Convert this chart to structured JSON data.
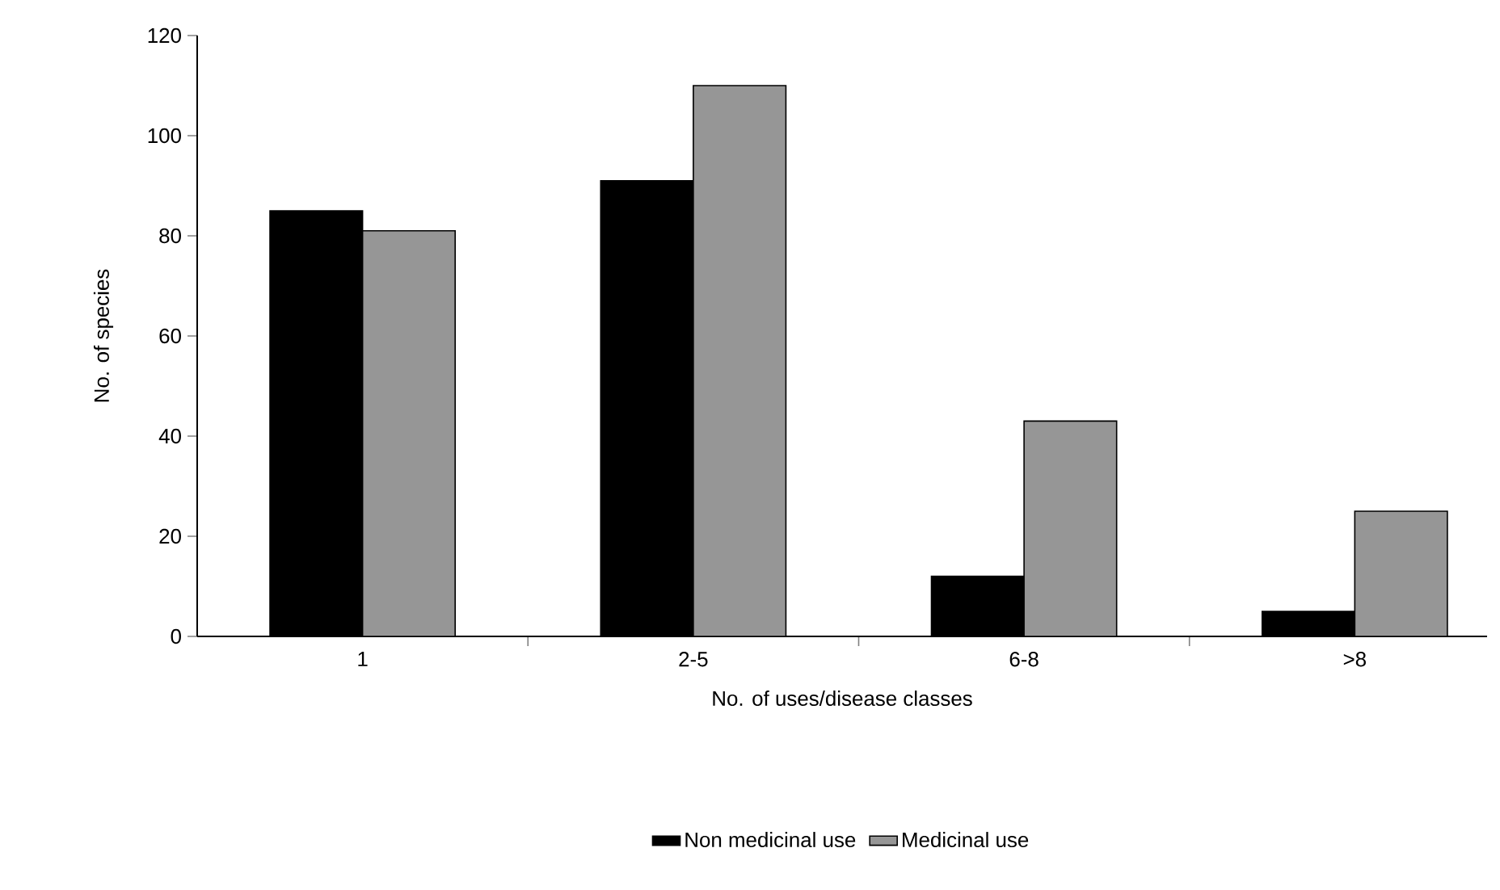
{
  "chart_data": {
    "type": "bar",
    "xlabel": "No. of uses/disease classes",
    "ylabel": "No. of species",
    "categories": [
      "1",
      "2-5",
      "6-8",
      ">8"
    ],
    "series": [
      {
        "name": "Non medicinal use",
        "color": "#000000",
        "values": [
          85,
          91,
          12,
          5
        ]
      },
      {
        "name": "Medicinal use",
        "color": "#969696",
        "values": [
          81,
          110,
          43,
          25
        ]
      }
    ],
    "ylim": [
      0,
      120
    ],
    "yticks": [
      0,
      20,
      40,
      60,
      80,
      100,
      120
    ],
    "legend": "bottom"
  }
}
